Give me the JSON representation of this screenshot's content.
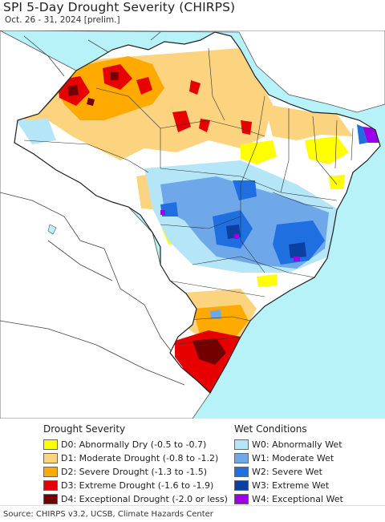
{
  "header": {
    "title": "SPI 5-Day Drought Severity (CHIRPS)",
    "subtitle": "Oct. 26 - 31, 2024 [prelim.]"
  },
  "legend": {
    "drought": {
      "title": "Drought Severity",
      "items": [
        {
          "label": "D0: Abnormally Dry (-0.5 to -0.7)",
          "color": "#ffff00"
        },
        {
          "label": "D1: Moderate Drought (-0.8 to -1.2)",
          "color": "#fcd37f"
        },
        {
          "label": "D2: Severe Drought (-1.3 to -1.5)",
          "color": "#ffaa00"
        },
        {
          "label": "D3: Extreme Drought (-1.6 to -1.9)",
          "color": "#e60000"
        },
        {
          "label": "D4: Exceptional Drought (-2.0 or less)",
          "color": "#730000"
        }
      ]
    },
    "wet": {
      "title": "Wet Conditions",
      "items": [
        {
          "label": "W0: Abnormally Wet",
          "color": "#b5e6f7"
        },
        {
          "label": "W1: Moderate Wet",
          "color": "#6fa8e8"
        },
        {
          "label": "W2: Severe Wet",
          "color": "#1f6fe0"
        },
        {
          "label": "W3: Extreme Wet",
          "color": "#0b3fa0"
        },
        {
          "label": "W4: Exceptional Wet",
          "color": "#9b00e6"
        }
      ]
    }
  },
  "map": {
    "ocean_color": "#b6f2f7",
    "land_color": "#ffffff",
    "border_color": "#222222"
  },
  "footer": {
    "source": "Source: CHIRPS v3.2, UCSB, Climate Hazards Center"
  }
}
